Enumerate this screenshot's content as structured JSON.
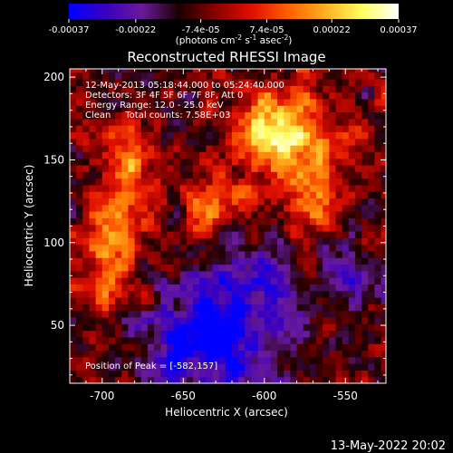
{
  "chart_data": {
    "type": "heatmap",
    "title": "Reconstructed RHESSI Image",
    "xlabel": "Heliocentric X (arcsec)",
    "ylabel": "Heliocentric Y (arcsec)",
    "xlim": [
      -720,
      -525
    ],
    "ylim": [
      15,
      205
    ],
    "x_ticks": [
      "-700",
      "-650",
      "-600",
      "-550"
    ],
    "x_tick_values": [
      -700,
      -650,
      -600,
      -550
    ],
    "y_ticks": [
      "50",
      "100",
      "150",
      "200"
    ],
    "y_tick_values": [
      50,
      100,
      150,
      200
    ],
    "colorbar": {
      "ticks": [
        "-0.00037",
        "-0.00022",
        "-7.4e-05",
        "7.4e-05",
        "0.00022",
        "0.00037"
      ],
      "tick_values": [
        -0.00037,
        -0.00022,
        -7.4e-05,
        7.4e-05,
        0.00022,
        0.00037
      ],
      "range": [
        -0.00037,
        0.00037
      ],
      "units_prefix": "(photons cm",
      "units_exp1": "-2",
      "units_mid": " s",
      "units_exp2": "-1",
      "units_mid2": " asec",
      "units_exp3": "-2",
      "units_suffix": ")",
      "stops": [
        "#0000ff",
        "#3a00c0",
        "#6a1a9a",
        "#1a0000",
        "#8a0000",
        "#e01000",
        "#ff6000",
        "#ffb020",
        "#ffff60",
        "#ffffff"
      ]
    },
    "annotations": [
      "12-May-2013 05:18:44.000 to 05:24:40.000",
      "Detectors: 3F 4F 5F 6F 7F 8F, Att 0",
      "Energy Range: 12.0 - 25.0 keV",
      "Clean     Total counts: 7.58E+03"
    ],
    "peak_label": "Position of Peak = [-582,157]",
    "peak": [
      -582,
      157
    ],
    "emission_sources": [
      {
        "x": -584,
        "y": 165,
        "amp": 1.0,
        "sx": 14,
        "sy": 22
      },
      {
        "x": -605,
        "y": 170,
        "amp": 0.75,
        "sx": 12,
        "sy": 14
      },
      {
        "x": -628,
        "y": 120,
        "amp": 0.8,
        "sx": 16,
        "sy": 16
      },
      {
        "x": -690,
        "y": 115,
        "amp": 0.85,
        "sx": 14,
        "sy": 18
      },
      {
        "x": -685,
        "y": 155,
        "amp": 0.75,
        "sx": 12,
        "sy": 12
      },
      {
        "x": -700,
        "y": 80,
        "amp": 0.55,
        "sx": 12,
        "sy": 14
      },
      {
        "x": -568,
        "y": 125,
        "amp": 0.55,
        "sx": 12,
        "sy": 18
      },
      {
        "x": -555,
        "y": 160,
        "amp": 0.45,
        "sx": 10,
        "sy": 12
      }
    ],
    "absorption_sources": [
      {
        "x": -615,
        "y": 55,
        "amp": 0.8,
        "sx": 22,
        "sy": 40
      },
      {
        "x": -650,
        "y": 40,
        "amp": 0.6,
        "sx": 20,
        "sy": 20
      },
      {
        "x": -548,
        "y": 80,
        "amp": 0.35,
        "sx": 14,
        "sy": 18
      }
    ]
  },
  "footer": {
    "timestamp": "13-May-2022 20:02"
  }
}
